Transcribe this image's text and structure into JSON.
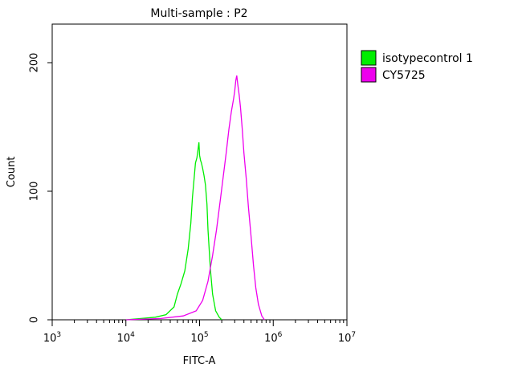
{
  "chart_data": {
    "type": "line",
    "title": "Multi-sample : P2",
    "xlabel": "FITC-A",
    "ylabel": "Count",
    "x_scale": "log",
    "xlim": [
      1000,
      10000000
    ],
    "ylim": [
      0,
      230
    ],
    "x_ticks": [
      {
        "value": 1000,
        "base": "10",
        "exp": "3"
      },
      {
        "value": 10000,
        "base": "10",
        "exp": "4"
      },
      {
        "value": 100000,
        "base": "10",
        "exp": "5"
      },
      {
        "value": 1000000,
        "base": "10",
        "exp": "6"
      },
      {
        "value": 10000000,
        "base": "10",
        "exp": "7"
      }
    ],
    "y_ticks": [
      {
        "value": 0,
        "label": "0"
      },
      {
        "value": 100,
        "label": "100"
      },
      {
        "value": 200,
        "label": "200"
      }
    ],
    "legend_position": "right",
    "series": [
      {
        "name": "isotypecontrol 1",
        "color": "#00ee00",
        "x": [
          10000,
          16000,
          25000,
          35000,
          45000,
          50000,
          56000,
          63000,
          70000,
          76000,
          80000,
          85000,
          88000,
          92000,
          95000,
          98000,
          100000,
          103000,
          106000,
          110000,
          115000,
          120000,
          126000,
          130000,
          140000,
          150000,
          165000,
          185000,
          200000
        ],
        "y": [
          0,
          1,
          2,
          4,
          10,
          20,
          28,
          38,
          55,
          75,
          95,
          112,
          122,
          126,
          132,
          138,
          128,
          124,
          122,
          118,
          112,
          105,
          90,
          70,
          40,
          20,
          7,
          2,
          0
        ]
      },
      {
        "name": "CY5725",
        "color": "#ee00ee",
        "x": [
          10000,
          30000,
          60000,
          90000,
          110000,
          130000,
          150000,
          170000,
          190000,
          210000,
          230000,
          250000,
          270000,
          290000,
          300000,
          310000,
          320000,
          330000,
          345000,
          360000,
          380000,
          400000,
          430000,
          460000,
          500000,
          540000,
          580000,
          630000,
          700000,
          760000
        ],
        "y": [
          0,
          1,
          3,
          7,
          15,
          30,
          50,
          70,
          92,
          112,
          130,
          148,
          162,
          172,
          178,
          186,
          190,
          183,
          175,
          165,
          148,
          130,
          110,
          88,
          65,
          42,
          25,
          12,
          3,
          0
        ]
      }
    ]
  }
}
